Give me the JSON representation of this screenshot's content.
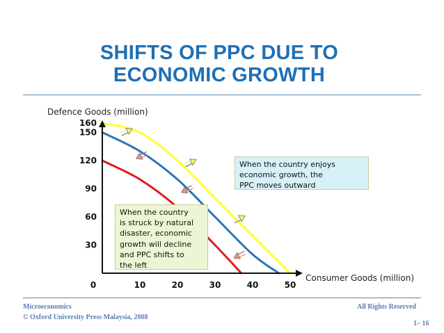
{
  "title": {
    "line1": "SHIFTS OF PPC DUE TO",
    "line2": "ECONOMIC GROWTH"
  },
  "footer": {
    "course": "Microeconomics",
    "publisher": "© Oxford University Press Malaysia, 2008",
    "rights": "All Rights Reserved",
    "page": "1– 16"
  },
  "notes": {
    "growth": [
      "When the country enjoys",
      "economic growth, the",
      "PPC moves outward"
    ],
    "disaster": [
      "When the country",
      "is struck by natural",
      "disaster, economic",
      "growth will decline",
      "and PPC shifts to",
      "the left"
    ]
  },
  "chart_data": {
    "type": "line",
    "xlabel": "Consumer Goods (million)",
    "ylabel": "Defence Goods (million)",
    "x_ticks": [
      0,
      10,
      20,
      30,
      40,
      50
    ],
    "y_ticks": [
      0,
      30,
      60,
      90,
      120,
      150,
      160
    ],
    "xlim": [
      0,
      50
    ],
    "ylim": [
      0,
      160
    ],
    "series": [
      {
        "color": "#ffff33",
        "points": [
          [
            0,
            160
          ],
          [
            10,
            150
          ],
          [
            20,
            120
          ],
          [
            30,
            80
          ],
          [
            40,
            40
          ],
          [
            50,
            0
          ]
        ]
      },
      {
        "color": "#2a74b8",
        "points": [
          [
            0,
            150
          ],
          [
            10,
            130
          ],
          [
            20,
            100
          ],
          [
            30,
            60
          ],
          [
            40,
            20
          ],
          [
            47,
            0
          ]
        ]
      },
      {
        "color": "#e31a1a",
        "points": [
          [
            0,
            120
          ],
          [
            10,
            100
          ],
          [
            20,
            70
          ],
          [
            30,
            30
          ],
          [
            37,
            0
          ]
        ]
      }
    ],
    "arrows": [
      {
        "direction": "outward",
        "color": "#f5f06a",
        "from": [
          5,
          148
        ],
        "to": [
          8,
          154
        ]
      },
      {
        "direction": "outward",
        "color": "#f5f06a",
        "from": [
          22,
          115
        ],
        "to": [
          25,
          121
        ]
      },
      {
        "direction": "outward",
        "color": "#f5f06a",
        "from": [
          35,
          55
        ],
        "to": [
          38,
          61
        ]
      },
      {
        "direction": "inward",
        "color": "#f28a8a",
        "from": [
          12,
          128
        ],
        "to": [
          9,
          122
        ]
      },
      {
        "direction": "inward",
        "color": "#f28a8a",
        "from": [
          24,
          92
        ],
        "to": [
          21,
          86
        ]
      },
      {
        "direction": "inward",
        "color": "#f28a8a",
        "from": [
          38,
          22
        ],
        "to": [
          35,
          16
        ]
      }
    ]
  }
}
